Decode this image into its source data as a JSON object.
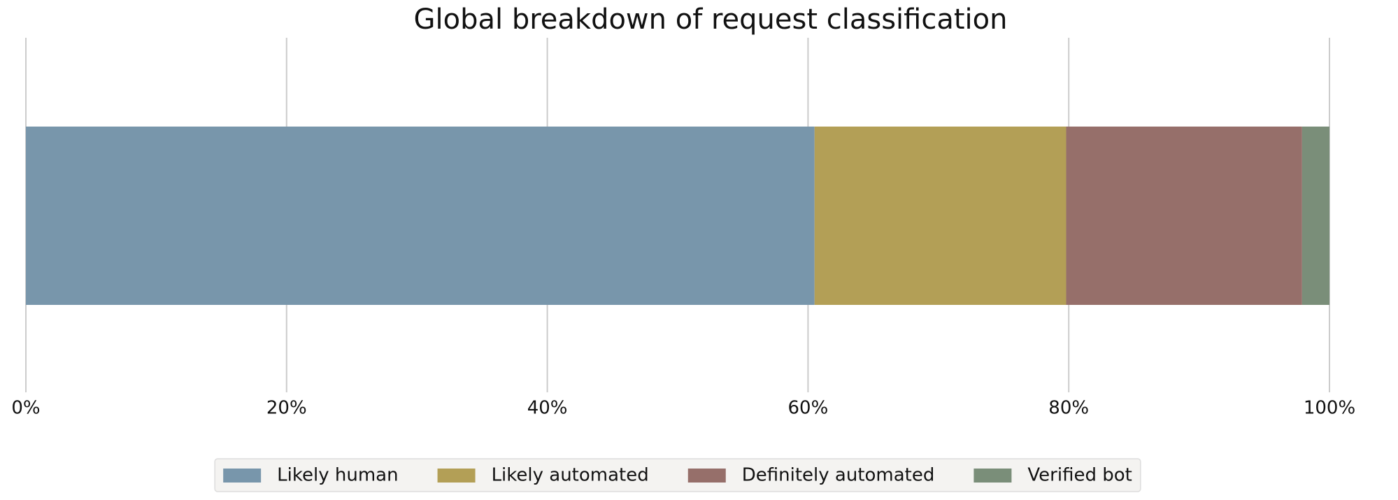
{
  "chart_data": {
    "type": "stacked_barh",
    "title": "Global breakdown of request classification",
    "series": [
      {
        "name": "Likely human",
        "color": "#7896ab",
        "values": [
          60.5
        ]
      },
      {
        "name": "Likely automated",
        "color": "#b39f56",
        "values": [
          19.3
        ]
      },
      {
        "name": "Definitely automated",
        "color": "#966f6a",
        "values": [
          18.1
        ]
      },
      {
        "name": "Verified bot",
        "color": "#7a8e79",
        "values": [
          2.1
        ]
      }
    ],
    "xlim": [
      0,
      100
    ],
    "xticks": [
      {
        "value": 0,
        "label": "0%"
      },
      {
        "value": 20,
        "label": "20%"
      },
      {
        "value": 40,
        "label": "40%"
      },
      {
        "value": 60,
        "label": "60%"
      },
      {
        "value": 80,
        "label": "80%"
      },
      {
        "value": 100,
        "label": "100%"
      }
    ],
    "grid": true,
    "legend": "bottom"
  }
}
